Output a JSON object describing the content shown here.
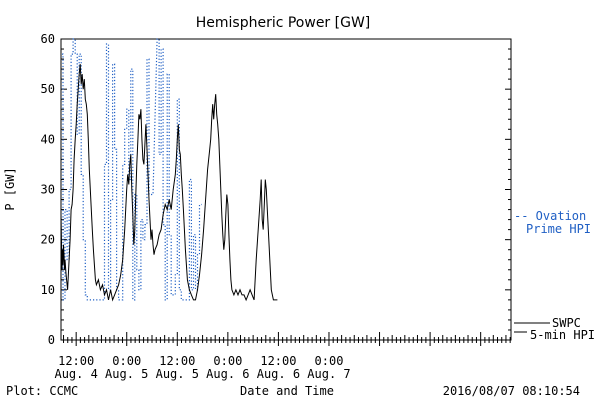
{
  "chart_data": {
    "type": "line",
    "title": "Hemispheric Power [GW]",
    "ylabel": "P [GW]",
    "xlabel": "Date and Time",
    "ylim": [
      0,
      60
    ],
    "yticks": [
      0,
      10,
      20,
      30,
      40,
      50,
      60
    ],
    "xlim": [
      3.35,
      7.8
    ],
    "xticks": [
      {
        "x": 3.5,
        "line1": "12:00",
        "line2": "Aug. 4"
      },
      {
        "x": 4.0,
        "line1": "0:00",
        "line2": "Aug. 5"
      },
      {
        "x": 4.5,
        "line1": "12:00",
        "line2": "Aug. 5"
      },
      {
        "x": 5.0,
        "line1": "0:00",
        "line2": "Aug. 6"
      },
      {
        "x": 5.5,
        "line1": "12:00",
        "line2": "Aug. 6"
      },
      {
        "x": 6.0,
        "line1": "0:00",
        "line2": "Aug. 7"
      }
    ],
    "series": [
      {
        "name": "SWPC 5-min HPI",
        "legend_line1": "SWPC",
        "legend_line2": "5-min HPI",
        "color": "#000000",
        "style": "solid",
        "points": [
          [
            3.35,
            25
          ],
          [
            3.36,
            14
          ],
          [
            3.365,
            18
          ],
          [
            3.37,
            15
          ],
          [
            3.375,
            19
          ],
          [
            3.38,
            17
          ],
          [
            3.385,
            14
          ],
          [
            3.39,
            16
          ],
          [
            3.4,
            13
          ],
          [
            3.41,
            11
          ],
          [
            3.415,
            10
          ],
          [
            3.42,
            12
          ],
          [
            3.43,
            16
          ],
          [
            3.44,
            20
          ],
          [
            3.45,
            26
          ],
          [
            3.46,
            27
          ],
          [
            3.47,
            30
          ],
          [
            3.48,
            36
          ],
          [
            3.49,
            40
          ],
          [
            3.5,
            43
          ],
          [
            3.51,
            47
          ],
          [
            3.52,
            50
          ],
          [
            3.53,
            53
          ],
          [
            3.54,
            55
          ],
          [
            3.55,
            51
          ],
          [
            3.56,
            53
          ],
          [
            3.57,
            50
          ],
          [
            3.58,
            52
          ],
          [
            3.59,
            48
          ],
          [
            3.6,
            47
          ],
          [
            3.61,
            45
          ],
          [
            3.62,
            40
          ],
          [
            3.63,
            34
          ],
          [
            3.64,
            30
          ],
          [
            3.65,
            26
          ],
          [
            3.66,
            22
          ],
          [
            3.67,
            18
          ],
          [
            3.68,
            15
          ],
          [
            3.69,
            12
          ],
          [
            3.7,
            11
          ],
          [
            3.72,
            12
          ],
          [
            3.74,
            10
          ],
          [
            3.76,
            11
          ],
          [
            3.78,
            9
          ],
          [
            3.8,
            10
          ],
          [
            3.82,
            8
          ],
          [
            3.84,
            10
          ],
          [
            3.86,
            8
          ],
          [
            3.88,
            9
          ],
          [
            3.9,
            10
          ],
          [
            3.92,
            11
          ],
          [
            3.94,
            13
          ],
          [
            3.96,
            16
          ],
          [
            3.98,
            22
          ],
          [
            4.0,
            30
          ],
          [
            4.01,
            33
          ],
          [
            4.02,
            31
          ],
          [
            4.03,
            35
          ],
          [
            4.04,
            37
          ],
          [
            4.05,
            30
          ],
          [
            4.06,
            25
          ],
          [
            4.07,
            19
          ],
          [
            4.08,
            22
          ],
          [
            4.09,
            29
          ],
          [
            4.1,
            35
          ],
          [
            4.11,
            40
          ],
          [
            4.12,
            45
          ],
          [
            4.13,
            44
          ],
          [
            4.14,
            46
          ],
          [
            4.15,
            40
          ],
          [
            4.16,
            36
          ],
          [
            4.17,
            35
          ],
          [
            4.18,
            39
          ],
          [
            4.19,
            43
          ],
          [
            4.2,
            38
          ],
          [
            4.21,
            33
          ],
          [
            4.22,
            28
          ],
          [
            4.23,
            24
          ],
          [
            4.24,
            20
          ],
          [
            4.25,
            22
          ],
          [
            4.26,
            19
          ],
          [
            4.27,
            17
          ],
          [
            4.28,
            18
          ],
          [
            4.3,
            19
          ],
          [
            4.32,
            21
          ],
          [
            4.34,
            22
          ],
          [
            4.36,
            25
          ],
          [
            4.38,
            27
          ],
          [
            4.4,
            26
          ],
          [
            4.42,
            28
          ],
          [
            4.44,
            26
          ],
          [
            4.46,
            30
          ],
          [
            4.48,
            33
          ],
          [
            4.49,
            36
          ],
          [
            4.5,
            40
          ],
          [
            4.51,
            43
          ],
          [
            4.52,
            38
          ],
          [
            4.53,
            37
          ],
          [
            4.54,
            33
          ],
          [
            4.55,
            30
          ],
          [
            4.56,
            26
          ],
          [
            4.57,
            22
          ],
          [
            4.58,
            18
          ],
          [
            4.59,
            15
          ],
          [
            4.6,
            12
          ],
          [
            4.62,
            10
          ],
          [
            4.64,
            9
          ],
          [
            4.66,
            8
          ],
          [
            4.68,
            8
          ],
          [
            4.7,
            10
          ],
          [
            4.72,
            13
          ],
          [
            4.74,
            17
          ],
          [
            4.76,
            22
          ],
          [
            4.78,
            28
          ],
          [
            4.8,
            34
          ],
          [
            4.82,
            38
          ],
          [
            4.83,
            40
          ],
          [
            4.84,
            44
          ],
          [
            4.85,
            47
          ],
          [
            4.86,
            44
          ],
          [
            4.87,
            47
          ],
          [
            4.88,
            49
          ],
          [
            4.89,
            45
          ],
          [
            4.9,
            43
          ],
          [
            4.91,
            40
          ],
          [
            4.92,
            35
          ],
          [
            4.93,
            30
          ],
          [
            4.94,
            25
          ],
          [
            4.95,
            21
          ],
          [
            4.96,
            18
          ],
          [
            4.97,
            20
          ],
          [
            4.98,
            25
          ],
          [
            4.99,
            29
          ],
          [
            5.0,
            27
          ],
          [
            5.01,
            21
          ],
          [
            5.02,
            16
          ],
          [
            5.03,
            12
          ],
          [
            5.04,
            10
          ],
          [
            5.06,
            9
          ],
          [
            5.08,
            10
          ],
          [
            5.1,
            9
          ],
          [
            5.12,
            10
          ],
          [
            5.14,
            9
          ],
          [
            5.16,
            9
          ],
          [
            5.18,
            8
          ],
          [
            5.2,
            9
          ],
          [
            5.22,
            10
          ],
          [
            5.24,
            9
          ],
          [
            5.26,
            8
          ],
          [
            5.28,
            16
          ],
          [
            5.3,
            22
          ],
          [
            5.32,
            28
          ],
          [
            5.33,
            32
          ],
          [
            5.34,
            24
          ],
          [
            5.35,
            22
          ],
          [
            5.36,
            27
          ],
          [
            5.37,
            32
          ],
          [
            5.38,
            30
          ],
          [
            5.39,
            26
          ],
          [
            5.4,
            22
          ],
          [
            5.41,
            18
          ],
          [
            5.42,
            14
          ],
          [
            5.43,
            10
          ],
          [
            5.45,
            8
          ],
          [
            5.47,
            8
          ],
          [
            5.49,
            8
          ]
        ]
      },
      {
        "name": "Ovation Prime HPI",
        "legend_line1": "-- Ovation",
        "legend_line2": "Prime HPI",
        "color": "#1f5fc4",
        "style": "dotted",
        "points": [
          [
            3.36,
            57
          ],
          [
            3.37,
            57
          ],
          [
            3.37,
            8
          ],
          [
            3.39,
            8
          ],
          [
            3.39,
            26
          ],
          [
            3.41,
            26
          ],
          [
            3.41,
            16
          ],
          [
            3.43,
            16
          ],
          [
            3.43,
            30
          ],
          [
            3.45,
            30
          ],
          [
            3.45,
            57
          ],
          [
            3.47,
            57
          ],
          [
            3.47,
            60
          ],
          [
            3.49,
            60
          ],
          [
            3.49,
            57
          ],
          [
            3.51,
            57
          ],
          [
            3.51,
            41
          ],
          [
            3.53,
            41
          ],
          [
            3.53,
            57
          ],
          [
            3.55,
            57
          ],
          [
            3.55,
            33
          ],
          [
            3.57,
            33
          ],
          [
            3.57,
            20
          ],
          [
            3.59,
            20
          ],
          [
            3.59,
            9
          ],
          [
            3.61,
            9
          ],
          [
            3.61,
            8
          ],
          [
            3.78,
            8
          ],
          [
            3.78,
            35
          ],
          [
            3.8,
            35
          ],
          [
            3.8,
            59
          ],
          [
            3.82,
            59
          ],
          [
            3.82,
            10
          ],
          [
            3.84,
            10
          ],
          [
            3.84,
            28
          ],
          [
            3.86,
            28
          ],
          [
            3.86,
            55
          ],
          [
            3.88,
            55
          ],
          [
            3.88,
            38
          ],
          [
            3.9,
            38
          ],
          [
            3.9,
            10
          ],
          [
            3.92,
            10
          ],
          [
            3.92,
            8
          ],
          [
            3.96,
            8
          ],
          [
            3.96,
            35
          ],
          [
            3.98,
            35
          ],
          [
            3.98,
            42
          ],
          [
            4.0,
            42
          ],
          [
            4.0,
            46
          ],
          [
            4.02,
            46
          ],
          [
            4.02,
            32
          ],
          [
            4.04,
            32
          ],
          [
            4.04,
            54
          ],
          [
            4.06,
            54
          ],
          [
            4.06,
            8
          ],
          [
            4.08,
            8
          ],
          [
            4.08,
            29
          ],
          [
            4.1,
            29
          ],
          [
            4.1,
            14
          ],
          [
            4.12,
            14
          ],
          [
            4.12,
            10
          ],
          [
            4.14,
            10
          ],
          [
            4.14,
            24
          ],
          [
            4.16,
            24
          ],
          [
            4.16,
            20
          ],
          [
            4.18,
            20
          ],
          [
            4.18,
            23
          ],
          [
            4.2,
            23
          ],
          [
            4.2,
            56
          ],
          [
            4.22,
            56
          ],
          [
            4.22,
            29
          ],
          [
            4.26,
            29
          ],
          [
            4.26,
            29
          ],
          [
            4.3,
            60
          ],
          [
            4.32,
            60
          ],
          [
            4.32,
            37
          ],
          [
            4.34,
            37
          ],
          [
            4.34,
            58
          ],
          [
            4.36,
            58
          ],
          [
            4.36,
            23
          ],
          [
            4.38,
            23
          ],
          [
            4.38,
            8
          ],
          [
            4.4,
            8
          ],
          [
            4.4,
            53
          ],
          [
            4.42,
            53
          ],
          [
            4.42,
            21
          ],
          [
            4.44,
            21
          ],
          [
            4.44,
            9
          ],
          [
            4.48,
            9
          ],
          [
            4.48,
            13
          ],
          [
            4.5,
            13
          ],
          [
            4.5,
            48
          ],
          [
            4.52,
            48
          ],
          [
            4.52,
            10
          ],
          [
            4.54,
            10
          ],
          [
            4.54,
            8
          ],
          [
            4.62,
            8
          ],
          [
            4.62,
            32
          ],
          [
            4.64,
            32
          ],
          [
            4.64,
            10
          ],
          [
            4.66,
            10
          ],
          [
            4.66,
            21
          ],
          [
            4.68,
            21
          ],
          [
            4.68,
            10
          ],
          [
            4.7,
            10
          ],
          [
            4.7,
            17
          ],
          [
            4.72,
            17
          ],
          [
            4.72,
            27
          ],
          [
            4.74,
            27
          ],
          [
            4.74,
            27
          ]
        ]
      }
    ],
    "footer_left": "Plot: CCMC",
    "footer_right": "2016/08/07 08:10:54"
  }
}
